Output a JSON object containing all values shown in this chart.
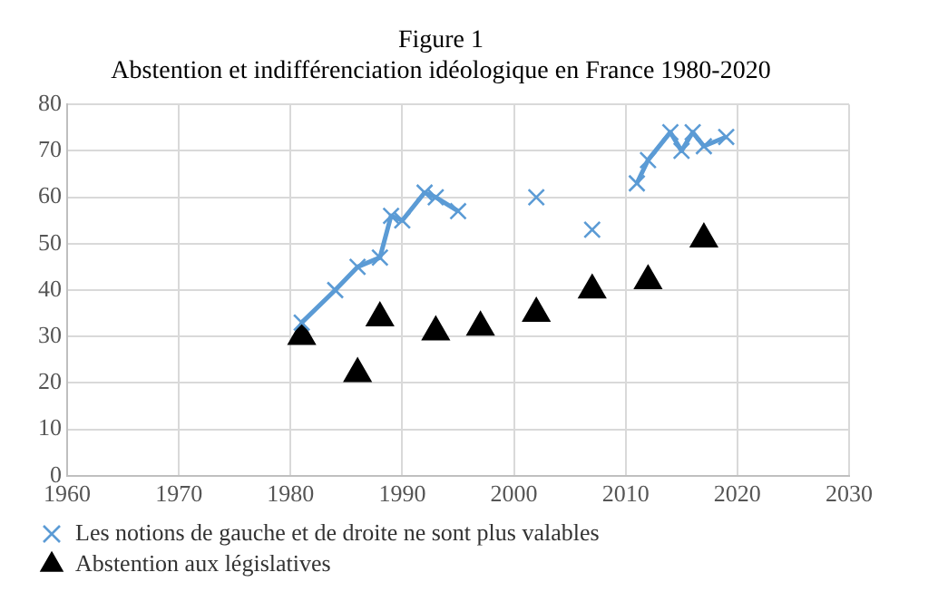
{
  "chart_data": {
    "type": "line",
    "title": "Figure 1",
    "subtitle": "Abstention et indifférenciation idéologique en France 1980-2020",
    "xlim": [
      1960,
      2030
    ],
    "xticks": [
      1960,
      1970,
      1980,
      1990,
      2000,
      2010,
      2020,
      2030
    ],
    "ylim": [
      0,
      80
    ],
    "yticks": [
      0,
      10,
      20,
      30,
      40,
      50,
      60,
      70,
      80
    ],
    "grid": true,
    "legend": "bottom",
    "series": [
      {
        "name": "Les notions de gauche et de droite ne sont plus valables",
        "marker": "cross",
        "color": "#5b9bd5",
        "x": [
          1981,
          1984,
          1986,
          1988,
          1989,
          1990,
          1992,
          1993,
          1995,
          1998,
          2002,
          2005,
          2007,
          2009,
          2011,
          2012,
          2014,
          2015,
          2016,
          2017,
          2019
        ],
        "values": [
          33,
          40,
          45,
          47,
          56,
          55,
          61,
          60,
          57,
          null,
          60,
          null,
          53,
          null,
          63,
          68,
          74,
          70,
          74,
          71,
          73
        ]
      },
      {
        "name": "Abstention aux législatives",
        "type": "scatter",
        "marker": "triangle",
        "color": "#000000",
        "x": [
          1981,
          1986,
          1988,
          1993,
          1997,
          2002,
          2007,
          2012,
          2017
        ],
        "values": [
          30,
          22,
          34,
          31,
          32,
          35,
          40,
          42,
          51
        ]
      }
    ]
  }
}
